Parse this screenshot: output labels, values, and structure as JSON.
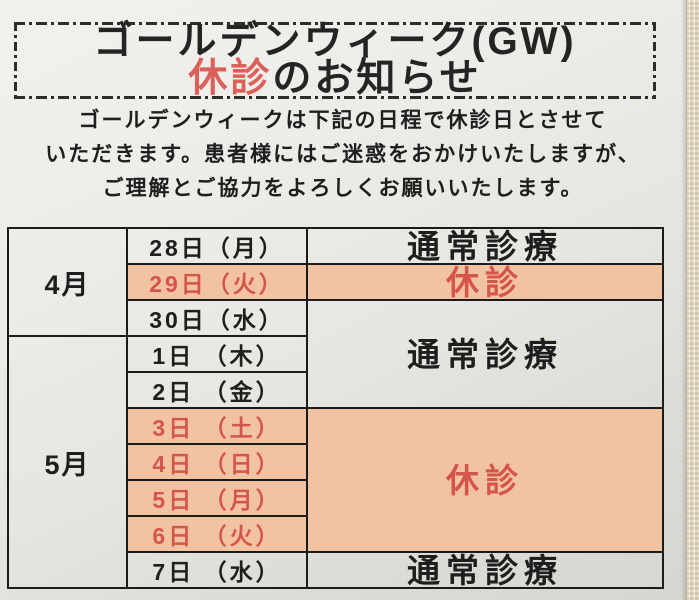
{
  "notice": {
    "title": {
      "line1": "ゴールデンウィーク(GW)",
      "line2_red": "休診",
      "line2_rest": "のお知らせ"
    },
    "intro_lines": [
      "ゴールデンウィークは下記の日程で休診日とさせて",
      "いただきます。患者様にはご迷惑をおかけいたしますが、",
      "ご理解とご協力をよろしくお願いいたします。"
    ],
    "colors": {
      "title_accent_red": "#dc605a",
      "closed_text_red": "#d5544c",
      "closed_cell_bg": "#f2c3a2",
      "table_border": "#1b1b1b",
      "paper_bg": "#eae9e4",
      "photo_edge_bg": "#d8ccb3"
    },
    "schedule": {
      "month_groups": [
        {
          "label": "4月",
          "rowspan": 3
        },
        {
          "label": "5月",
          "rowspan": 7
        }
      ],
      "rows": [
        {
          "date": "28日（月）",
          "closed": false
        },
        {
          "date": "29日（火）",
          "closed": true
        },
        {
          "date": "30日（水）",
          "closed": false
        },
        {
          "date": "1日 （木）",
          "closed": false
        },
        {
          "date": "2日 （金）",
          "closed": false
        },
        {
          "date": "3日 （土）",
          "closed": true
        },
        {
          "date": "4日 （日）",
          "closed": true
        },
        {
          "date": "5日 （月）",
          "closed": true
        },
        {
          "date": "6日 （火）",
          "closed": true
        },
        {
          "date": "7日 （水）",
          "closed": false
        }
      ],
      "status_cells": [
        {
          "label": "通常診療",
          "rowspan": 1,
          "closed": false
        },
        {
          "label": "休診",
          "rowspan": 1,
          "closed": true
        },
        {
          "label": "通常診療",
          "rowspan": 3,
          "closed": false
        },
        {
          "label": "休診",
          "rowspan": 4,
          "closed": true
        },
        {
          "label": "通常診療",
          "rowspan": 1,
          "closed": false
        }
      ]
    }
  }
}
